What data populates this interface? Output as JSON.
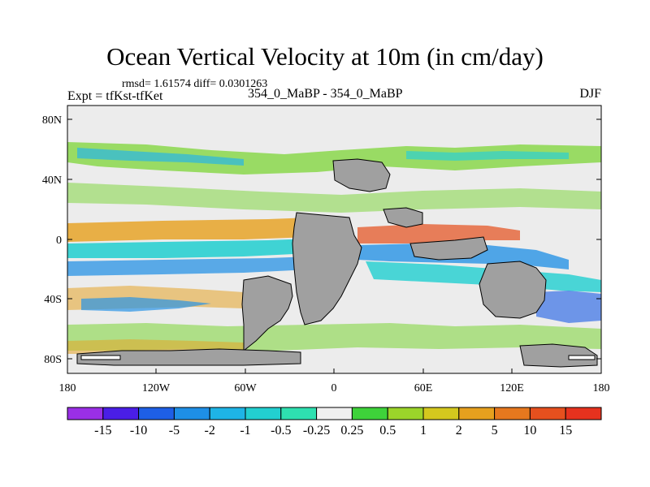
{
  "title": "Ocean Vertical Velocity at 10m (in cm/day)",
  "stats_line": "rmsd= 1.61574 diff= 0.0301263",
  "runs_line": "354_0_MaBP - 354_0_MaBP",
  "expt_label": "Expt = tfKst-tfKet",
  "season_label": "DJF",
  "lat_ticks": [
    "80N",
    "40N",
    "0",
    "40S",
    "80S"
  ],
  "lon_ticks": [
    "180",
    "120W",
    "60W",
    "0",
    "60E",
    "120E",
    "180"
  ],
  "colorbar": {
    "labels": [
      "-15",
      "-10",
      "-5",
      "-2",
      "-1",
      "-0.5",
      "-0.25",
      "0.25",
      "0.5",
      "1",
      "2",
      "5",
      "10",
      "15"
    ],
    "colors": [
      "#9a2fe6",
      "#4a1ee6",
      "#1e5fe6",
      "#1e8fe6",
      "#1eb4e6",
      "#22cfd0",
      "#2ee0b0",
      "#f0f0f0",
      "#3ed23a",
      "#9bd42a",
      "#d4c81e",
      "#e6a01e",
      "#e6781e",
      "#e6501e",
      "#e6321e"
    ]
  },
  "map_colors": {
    "land": "#a0a0a0",
    "neutral": "#ececec",
    "border": "#000000"
  }
}
